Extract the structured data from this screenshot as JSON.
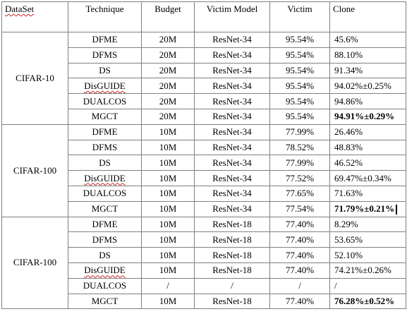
{
  "headers": {
    "dataset": "DataSet",
    "technique": "Technique",
    "budget": "Budget",
    "victim_model": "Victim Model",
    "victim": "Victim",
    "clone": "Clone"
  },
  "groups": [
    {
      "dataset": "CIFAR-10",
      "rows": [
        {
          "technique": "DFME",
          "budget": "20M",
          "model": "ResNet-34",
          "victim": "95.54%",
          "clone": "45.6%"
        },
        {
          "technique": "DFMS",
          "budget": "20M",
          "model": "ResNet-34",
          "victim": "95.54%",
          "clone": "88.10%"
        },
        {
          "technique": "DS",
          "budget": "20M",
          "model": "ResNet-34",
          "victim": "95.54%",
          "clone": "91.34%"
        },
        {
          "technique": "DisGUIDE",
          "budget": "20M",
          "model": "ResNet-34",
          "victim": "95.54%",
          "clone": "94.02%±0.25%"
        },
        {
          "technique": "DUALCOS",
          "budget": "20M",
          "model": "ResNet-34",
          "victim": "95.54%",
          "clone": "94.86%"
        },
        {
          "technique": "MGCT",
          "budget": "20M",
          "model": "ResNet-34",
          "victim": "95.54%",
          "clone": "94.91%±0.29%"
        }
      ]
    },
    {
      "dataset": "CIFAR-100",
      "rows": [
        {
          "technique": "DFME",
          "budget": "10M",
          "model": "ResNet-34",
          "victim": "77.99%",
          "clone": "26.46%"
        },
        {
          "technique": "DFMS",
          "budget": "10M",
          "model": "ResNet-34",
          "victim": "78.52%",
          "clone": "48.83%"
        },
        {
          "technique": "DS",
          "budget": "10M",
          "model": "ResNet-34",
          "victim": "77.99%",
          "clone": "46.52%"
        },
        {
          "technique": "DisGUIDE",
          "budget": "10M",
          "model": "ResNet-34",
          "victim": "77.52%",
          "clone": "69.47%±0.34%"
        },
        {
          "technique": "DUALCOS",
          "budget": "10M",
          "model": "ResNet-34",
          "victim": "77.65%",
          "clone": "71.63%"
        },
        {
          "technique": "MGCT",
          "budget": "10M",
          "model": "ResNet-34",
          "victim": "77.54%",
          "clone": "71.79%±0.21%"
        }
      ]
    },
    {
      "dataset": "CIFAR-100",
      "rows": [
        {
          "technique": "DFME",
          "budget": "10M",
          "model": "ResNet-18",
          "victim": "77.40%",
          "clone": "8.29%"
        },
        {
          "technique": "DFMS",
          "budget": "10M",
          "model": "ResNet-18",
          "victim": "77.40%",
          "clone": "53.65%"
        },
        {
          "technique": "DS",
          "budget": "10M",
          "model": "ResNet-18",
          "victim": "77.40%",
          "clone": "52.10%"
        },
        {
          "technique": "DisGUIDE",
          "budget": "10M",
          "model": "ResNet-18",
          "victim": "77.40%",
          "clone": "74.21%±0.26%"
        },
        {
          "technique": "DUALCOS",
          "budget": "/",
          "model": "/",
          "victim": "/",
          "clone": "/"
        },
        {
          "technique": "MGCT",
          "budget": "10M",
          "model": "ResNet-18",
          "victim": "77.40%",
          "clone": "76.28%±0.52%"
        }
      ]
    }
  ]
}
